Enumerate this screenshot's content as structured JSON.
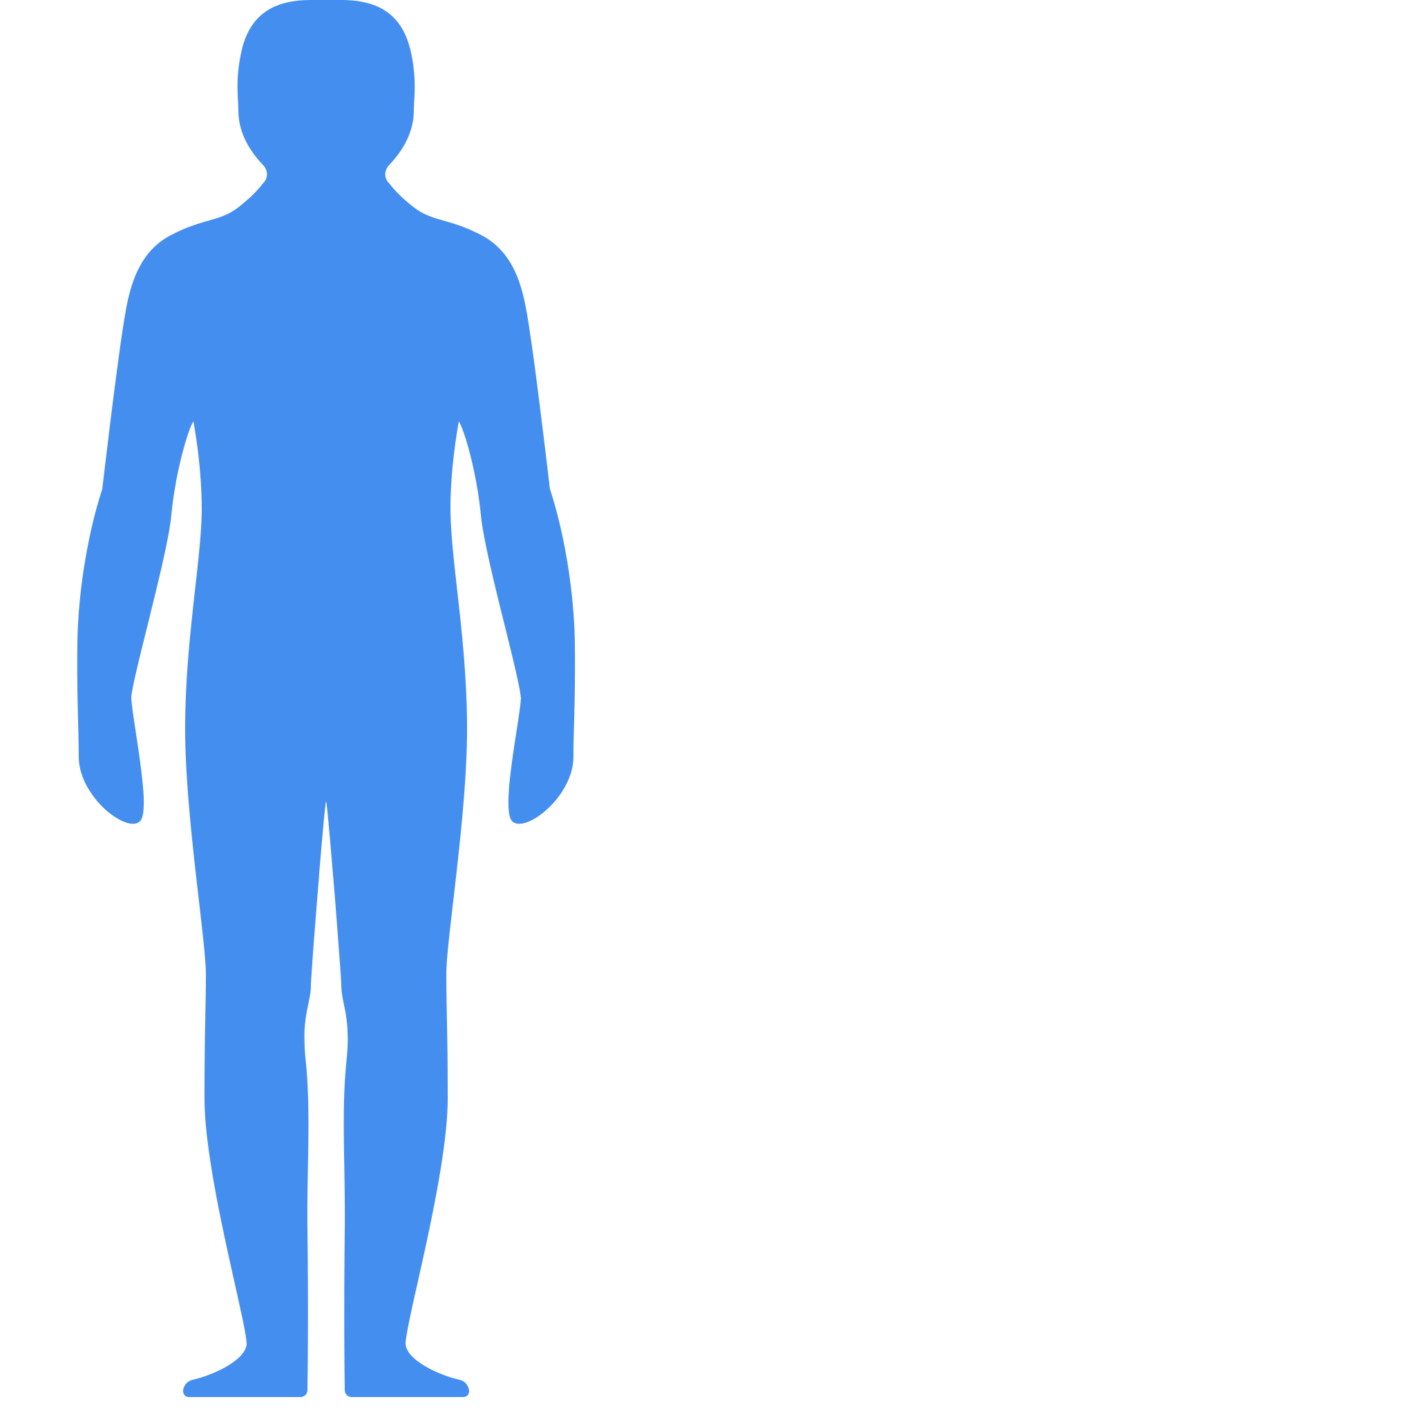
{
  "figure": {
    "icon": "human-body-silhouette-icon",
    "fill_color": "#448EF0",
    "background_color": "#FFFFFF"
  }
}
